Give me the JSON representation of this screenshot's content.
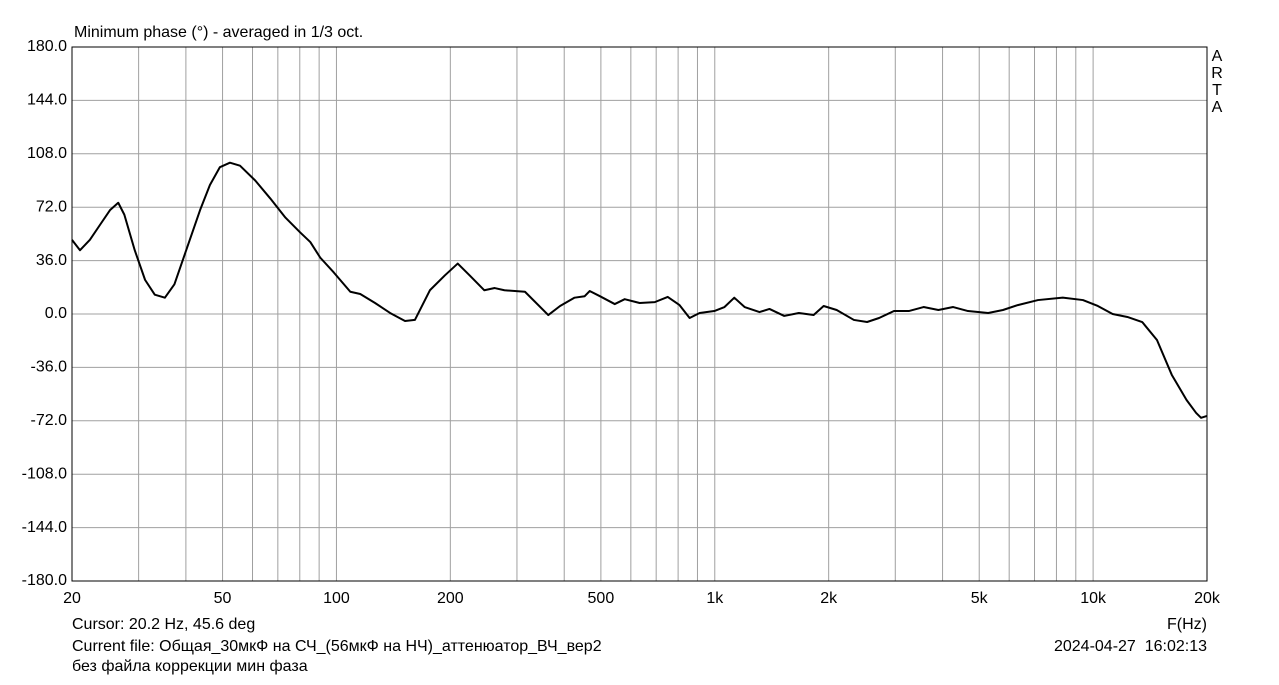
{
  "chart_data": {
    "type": "line",
    "title": "Minimum phase (°) - averaged in 1/3 oct.",
    "xlabel": "F(Hz)",
    "xscale": "log",
    "color": "#000000",
    "grid": true,
    "xlim": [
      20,
      20000
    ],
    "xticks": [
      20,
      50,
      100,
      200,
      500,
      {
        "value": 1000,
        "label": "1k"
      },
      {
        "value": 2000,
        "label": "2k"
      },
      {
        "value": 5000,
        "label": "5k"
      },
      {
        "value": 10000,
        "label": "10k"
      },
      {
        "value": 20000,
        "label": "20k"
      }
    ],
    "xgrid": [
      30,
      40,
      60,
      70,
      80,
      90,
      300,
      400,
      600,
      700,
      800,
      900,
      3000,
      4000,
      6000,
      7000,
      8000,
      9000
    ],
    "ylim": [
      -180,
      180
    ],
    "yticks": [
      {
        "value": 180,
        "label": "180.0"
      },
      {
        "value": 144,
        "label": "144.0"
      },
      {
        "value": 108,
        "label": "108.0"
      },
      {
        "value": 72,
        "label": "72.0"
      },
      {
        "value": 36,
        "label": "36.0"
      },
      {
        "value": 0,
        "label": "0.0"
      },
      {
        "value": -36,
        "label": "-36.0"
      },
      {
        "value": -72,
        "label": "-72.0"
      },
      {
        "value": -108,
        "label": "-108.0"
      },
      {
        "value": -144,
        "label": "-144.0"
      },
      {
        "value": -180,
        "label": "-180.0"
      }
    ],
    "x": [
      20,
      21,
      22.3,
      23.7,
      25.2,
      26.5,
      27.5,
      29.3,
      31.2,
      33.1,
      35.2,
      37.3,
      39.7,
      43.6,
      46.3,
      49.2,
      52.3,
      55.6,
      61,
      66.8,
      73.3,
      80.2,
      85.3,
      90.6,
      98.4,
      108.8,
      115.6,
      126.5,
      138.6,
      151.8,
      161.2,
      176.6,
      193.4,
      209.2,
      225,
      246,
      262,
      278,
      315,
      363,
      390,
      426,
      453,
      467,
      497,
      544,
      578,
      633,
      694,
      751,
      807,
      858,
      912,
      997,
      1061,
      1126,
      1199,
      1313,
      1395,
      1526,
      1668,
      1825,
      1940,
      2100,
      2332,
      2527,
      2718,
      2976,
      3257,
      3564,
      3900,
      4267,
      4670,
      5280,
      5778,
      6322,
      7150,
      8315,
      9400,
      10290,
      11260,
      12320,
      13480,
      14750,
      16140,
      17660,
      18720,
      19290,
      20000
    ],
    "values": [
      50,
      43,
      50,
      60,
      70,
      75,
      67,
      43,
      23,
      13,
      11,
      20,
      40,
      70,
      87,
      99,
      102,
      100,
      90,
      78,
      65,
      55,
      48.5,
      38,
      28,
      15,
      13.5,
      7.4,
      0.7,
      -4.7,
      -4,
      16,
      26,
      34,
      26,
      16,
      17.5,
      16,
      15,
      -0.7,
      5.4,
      11,
      12,
      15.5,
      12,
      6.7,
      10,
      7.4,
      8,
      11.5,
      6,
      -2.7,
      0.7,
      2,
      4.7,
      11,
      4.7,
      1.3,
      3.4,
      -1.3,
      0.7,
      -0.7,
      5.4,
      2.7,
      -4,
      -5.4,
      -2.7,
      2,
      2,
      4.7,
      2.7,
      4.7,
      2,
      0.7,
      2.7,
      6,
      9.4,
      11,
      9.4,
      5.4,
      0,
      -2,
      -5.4,
      -17.5,
      -41,
      -58,
      -66.7,
      -70,
      -68.7
    ]
  },
  "watermark": [
    "A",
    "R",
    "T",
    "A"
  ],
  "footer": {
    "cursor": "Cursor: 20.2 Hz, 45.6 deg",
    "current_file": "Current file: Общая_30мкФ на СЧ_(56мкФ на НЧ)_аттенюатор_ВЧ_вер2",
    "note": "без файла коррекции мин фаза",
    "timestamp": "2024-04-27  16:02:13"
  }
}
